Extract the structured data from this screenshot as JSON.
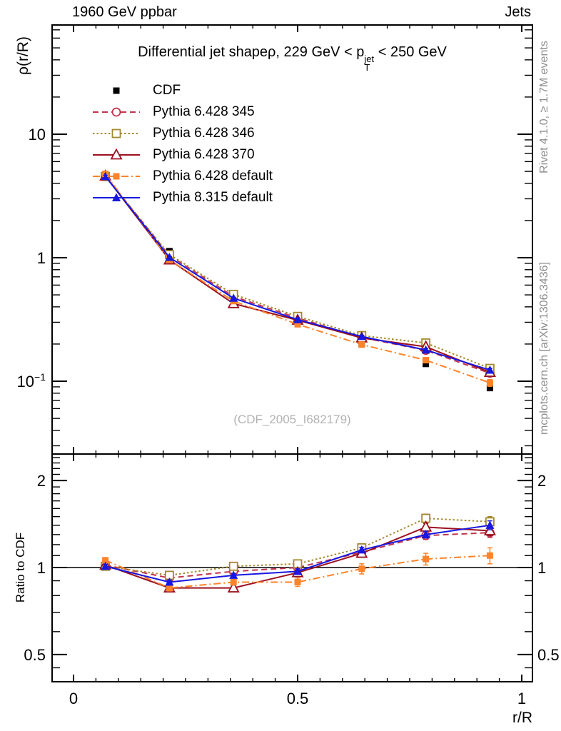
{
  "header": {
    "left": "1960 GeV ppbar",
    "right": "Jets"
  },
  "title": {
    "prefix": "Differential jet shapeρ, 229 GeV < p",
    "sup": "jet",
    "sub": "T",
    "suffix": " < 250 GeV"
  },
  "watermark": "(CDF_2005_I682179)",
  "credits": {
    "top": "Rivet 4.1.0, ≥ 1.7M events",
    "bottom": "mcplots.cern.ch [arXiv:1306.3436]"
  },
  "axes": {
    "x": {
      "label": "r/R",
      "range": [
        -0.048,
        1.026
      ],
      "minor_step": 0.05,
      "ticks": [
        {
          "v": 0,
          "label": "0"
        },
        {
          "v": 0.5,
          "label": "0.5"
        },
        {
          "v": 1,
          "label": "1"
        }
      ]
    },
    "main_y": {
      "label": "ρ(r/R)",
      "scale": "log",
      "range": [
        0.026,
        77
      ],
      "ticks": [
        {
          "v": 10,
          "label": "10"
        },
        {
          "v": 1,
          "label": "1"
        },
        {
          "v": 0.1,
          "label": "10",
          "exp": "−1"
        }
      ]
    },
    "ratio_y": {
      "label": "Ratio to CDF",
      "scale": "log",
      "range": [
        0.4,
        2.47
      ],
      "ticks": [
        {
          "v": 2,
          "label": "2"
        },
        {
          "v": 1,
          "label": "1"
        },
        {
          "v": 0.5,
          "label": "0.5"
        }
      ]
    }
  },
  "chart_data": {
    "type": "line",
    "x": [
      0.071,
      0.214,
      0.357,
      0.5,
      0.643,
      0.786,
      0.929
    ],
    "reference": {
      "name": "CDF",
      "color": "#000000",
      "marker": "square",
      "values": [
        4.5,
        1.13,
        0.5,
        0.325,
        0.2,
        0.138,
        0.088
      ],
      "values_err": [
        0.1,
        0.025,
        0.012,
        0.008,
        0.006,
        0.005,
        0.004
      ]
    },
    "series": [
      {
        "name": "Pythia 6.428 345",
        "color": "#c0334d",
        "line": "dashed",
        "marker": "circle-open",
        "values": [
          4.59,
          1.04,
          0.485,
          0.325,
          0.226,
          0.178,
          0.116
        ],
        "ratio": [
          1.02,
          0.92,
          0.97,
          1.0,
          1.13,
          1.29,
          1.32
        ],
        "ratio_err": [
          0.02,
          0.02,
          0.02,
          0.02,
          0.03,
          0.04,
          0.05
        ]
      },
      {
        "name": "Pythia 6.428 346",
        "color": "#a3892e",
        "line": "dotted",
        "marker": "square-open",
        "values": [
          4.55,
          1.06,
          0.505,
          0.335,
          0.234,
          0.204,
          0.127
        ],
        "ratio": [
          1.01,
          0.94,
          1.01,
          1.03,
          1.17,
          1.48,
          1.44
        ],
        "ratio_err": [
          0.02,
          0.02,
          0.02,
          0.02,
          0.03,
          0.05,
          0.06
        ]
      },
      {
        "name": "Pythia 6.428 370",
        "color": "#9c1020",
        "line": "solid",
        "marker": "triangle-open",
        "values": [
          4.59,
          0.96,
          0.425,
          0.312,
          0.224,
          0.19,
          0.118
        ],
        "ratio": [
          1.02,
          0.85,
          0.85,
          0.96,
          1.12,
          1.38,
          1.34
        ],
        "ratio_err": [
          0.02,
          0.02,
          0.02,
          0.02,
          0.03,
          0.04,
          0.05
        ]
      },
      {
        "name": "Pythia 6.428 default",
        "color": "#ff8329",
        "line": "dashdot",
        "marker": "square",
        "values": [
          4.77,
          0.96,
          0.445,
          0.289,
          0.198,
          0.148,
          0.097
        ],
        "ratio": [
          1.06,
          0.85,
          0.89,
          0.89,
          0.99,
          1.07,
          1.1
        ],
        "ratio_err": [
          0.02,
          0.02,
          0.02,
          0.03,
          0.04,
          0.05,
          0.07
        ]
      },
      {
        "name": "Pythia 8.315 default",
        "color": "#1717e0",
        "line": "solid",
        "marker": "triangle",
        "values": [
          4.55,
          1.006,
          0.47,
          0.315,
          0.23,
          0.179,
          0.123
        ],
        "ratio": [
          1.01,
          0.89,
          0.94,
          0.97,
          1.15,
          1.3,
          1.4
        ],
        "ratio_err": [
          0.015,
          0.015,
          0.015,
          0.02,
          0.025,
          0.035,
          0.05
        ]
      }
    ],
    "ratio_reference_line": 1
  }
}
